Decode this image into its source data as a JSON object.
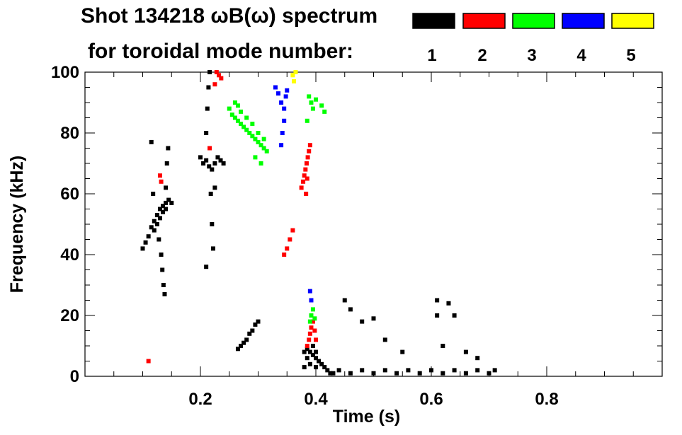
{
  "header": {
    "title_line1": "Shot 134218 ωB(ω) spectrum",
    "title_line2": "for toroidal mode number:"
  },
  "chart_data": {
    "type": "scatter",
    "title": "Shot 134218 ωB(ω) spectrum for toroidal mode number:",
    "xlabel": "Time (s)",
    "ylabel": "Frequency (kHz)",
    "xlim": [
      0.0,
      1.0
    ],
    "ylim": [
      0,
      100
    ],
    "xticks": [
      0.2,
      0.4,
      0.6,
      0.8
    ],
    "xtick_labels": [
      "0.2",
      "0.4",
      "0.6",
      "0.8"
    ],
    "yticks": [
      0,
      20,
      40,
      60,
      80,
      100
    ],
    "ytick_labels": [
      "0",
      "20",
      "40",
      "60",
      "80",
      "100"
    ],
    "grid": false,
    "legend_placement": "top-right",
    "legend": [
      {
        "label": "1",
        "color": "#000000"
      },
      {
        "label": "2",
        "color": "#ff0000"
      },
      {
        "label": "3",
        "color": "#00ff00"
      },
      {
        "label": "4",
        "color": "#0000ff"
      },
      {
        "label": "5",
        "color": "#ffff00"
      }
    ],
    "series": [
      {
        "name": "1",
        "color": "#000000",
        "points": [
          [
            0.1,
            42
          ],
          [
            0.105,
            44
          ],
          [
            0.11,
            46
          ],
          [
            0.115,
            49
          ],
          [
            0.12,
            51
          ],
          [
            0.125,
            53
          ],
          [
            0.13,
            55
          ],
          [
            0.135,
            56
          ],
          [
            0.14,
            57
          ],
          [
            0.145,
            58
          ],
          [
            0.15,
            57
          ],
          [
            0.12,
            48
          ],
          [
            0.125,
            50
          ],
          [
            0.13,
            52
          ],
          [
            0.135,
            54
          ],
          [
            0.14,
            55
          ],
          [
            0.128,
            45
          ],
          [
            0.132,
            40
          ],
          [
            0.134,
            35
          ],
          [
            0.136,
            30
          ],
          [
            0.138,
            27
          ],
          [
            0.14,
            62
          ],
          [
            0.142,
            70
          ],
          [
            0.144,
            75
          ],
          [
            0.118,
            60
          ],
          [
            0.115,
            77
          ],
          [
            0.2,
            72
          ],
          [
            0.205,
            70
          ],
          [
            0.21,
            71
          ],
          [
            0.215,
            69
          ],
          [
            0.22,
            68
          ],
          [
            0.225,
            70
          ],
          [
            0.23,
            72
          ],
          [
            0.235,
            71
          ],
          [
            0.24,
            70
          ],
          [
            0.21,
            80
          ],
          [
            0.212,
            88
          ],
          [
            0.214,
            95
          ],
          [
            0.216,
            100
          ],
          [
            0.218,
            60
          ],
          [
            0.22,
            50
          ],
          [
            0.222,
            42
          ],
          [
            0.21,
            36
          ],
          [
            0.225,
            62
          ],
          [
            0.265,
            9
          ],
          [
            0.27,
            10
          ],
          [
            0.275,
            11
          ],
          [
            0.28,
            12
          ],
          [
            0.285,
            14
          ],
          [
            0.29,
            15
          ],
          [
            0.295,
            17
          ],
          [
            0.3,
            18
          ],
          [
            0.38,
            8
          ],
          [
            0.385,
            9
          ],
          [
            0.39,
            8
          ],
          [
            0.395,
            7
          ],
          [
            0.4,
            6
          ],
          [
            0.405,
            5
          ],
          [
            0.41,
            4
          ],
          [
            0.415,
            3
          ],
          [
            0.42,
            2
          ],
          [
            0.425,
            1
          ],
          [
            0.43,
            1
          ],
          [
            0.38,
            3
          ],
          [
            0.39,
            4
          ],
          [
            0.4,
            3
          ],
          [
            0.385,
            6
          ],
          [
            0.395,
            10
          ],
          [
            0.4,
            8
          ],
          [
            0.44,
            2
          ],
          [
            0.46,
            1
          ],
          [
            0.48,
            2
          ],
          [
            0.5,
            1
          ],
          [
            0.52,
            2
          ],
          [
            0.54,
            1
          ],
          [
            0.56,
            2
          ],
          [
            0.58,
            1
          ],
          [
            0.6,
            2
          ],
          [
            0.62,
            1
          ],
          [
            0.64,
            2
          ],
          [
            0.66,
            1
          ],
          [
            0.68,
            2
          ],
          [
            0.7,
            1
          ],
          [
            0.71,
            2
          ],
          [
            0.45,
            25
          ],
          [
            0.46,
            22
          ],
          [
            0.48,
            18
          ],
          [
            0.5,
            19
          ],
          [
            0.61,
            25
          ],
          [
            0.61,
            20
          ],
          [
            0.63,
            24
          ],
          [
            0.64,
            20
          ],
          [
            0.62,
            10
          ],
          [
            0.66,
            8
          ],
          [
            0.68,
            6
          ],
          [
            0.52,
            12
          ],
          [
            0.55,
            8
          ]
        ]
      },
      {
        "name": "2",
        "color": "#ff0000",
        "points": [
          [
            0.228,
            100
          ],
          [
            0.232,
            99
          ],
          [
            0.236,
            98
          ],
          [
            0.225,
            96
          ],
          [
            0.13,
            66
          ],
          [
            0.132,
            64
          ],
          [
            0.216,
            75
          ],
          [
            0.11,
            5
          ],
          [
            0.375,
            62
          ],
          [
            0.378,
            64
          ],
          [
            0.38,
            66
          ],
          [
            0.382,
            68
          ],
          [
            0.384,
            70
          ],
          [
            0.386,
            72
          ],
          [
            0.388,
            74
          ],
          [
            0.39,
            76
          ],
          [
            0.385,
            65
          ],
          [
            0.383,
            60
          ],
          [
            0.345,
            40
          ],
          [
            0.35,
            42
          ],
          [
            0.355,
            45
          ],
          [
            0.36,
            48
          ],
          [
            0.385,
            10
          ],
          [
            0.388,
            12
          ],
          [
            0.39,
            14
          ],
          [
            0.392,
            16
          ],
          [
            0.395,
            18
          ],
          [
            0.398,
            15
          ],
          [
            0.4,
            12
          ]
        ]
      },
      {
        "name": "3",
        "color": "#00ff00",
        "points": [
          [
            0.25,
            88
          ],
          [
            0.255,
            86
          ],
          [
            0.26,
            85
          ],
          [
            0.265,
            84
          ],
          [
            0.27,
            83
          ],
          [
            0.275,
            82
          ],
          [
            0.28,
            81
          ],
          [
            0.285,
            80
          ],
          [
            0.29,
            79
          ],
          [
            0.295,
            78
          ],
          [
            0.3,
            77
          ],
          [
            0.305,
            76
          ],
          [
            0.31,
            75
          ],
          [
            0.315,
            74
          ],
          [
            0.26,
            90
          ],
          [
            0.265,
            89
          ],
          [
            0.27,
            87
          ],
          [
            0.28,
            85
          ],
          [
            0.29,
            83
          ],
          [
            0.3,
            80
          ],
          [
            0.31,
            78
          ],
          [
            0.295,
            72
          ],
          [
            0.305,
            70
          ],
          [
            0.388,
            92
          ],
          [
            0.392,
            90
          ],
          [
            0.395,
            88
          ],
          [
            0.4,
            91
          ],
          [
            0.41,
            89
          ],
          [
            0.415,
            87
          ],
          [
            0.385,
            84
          ],
          [
            0.39,
            18
          ],
          [
            0.392,
            20
          ],
          [
            0.395,
            22
          ],
          [
            0.398,
            19
          ]
        ]
      },
      {
        "name": "4",
        "color": "#0000ff",
        "points": [
          [
            0.33,
            95
          ],
          [
            0.335,
            93
          ],
          [
            0.34,
            90
          ],
          [
            0.345,
            88
          ],
          [
            0.348,
            92
          ],
          [
            0.35,
            94
          ],
          [
            0.345,
            84
          ],
          [
            0.342,
            80
          ],
          [
            0.34,
            76
          ],
          [
            0.39,
            28
          ],
          [
            0.392,
            25
          ]
        ]
      },
      {
        "name": "5",
        "color": "#ffff00",
        "points": [
          [
            0.36,
            99
          ],
          [
            0.362,
            97
          ],
          [
            0.365,
            100
          ]
        ]
      }
    ]
  }
}
